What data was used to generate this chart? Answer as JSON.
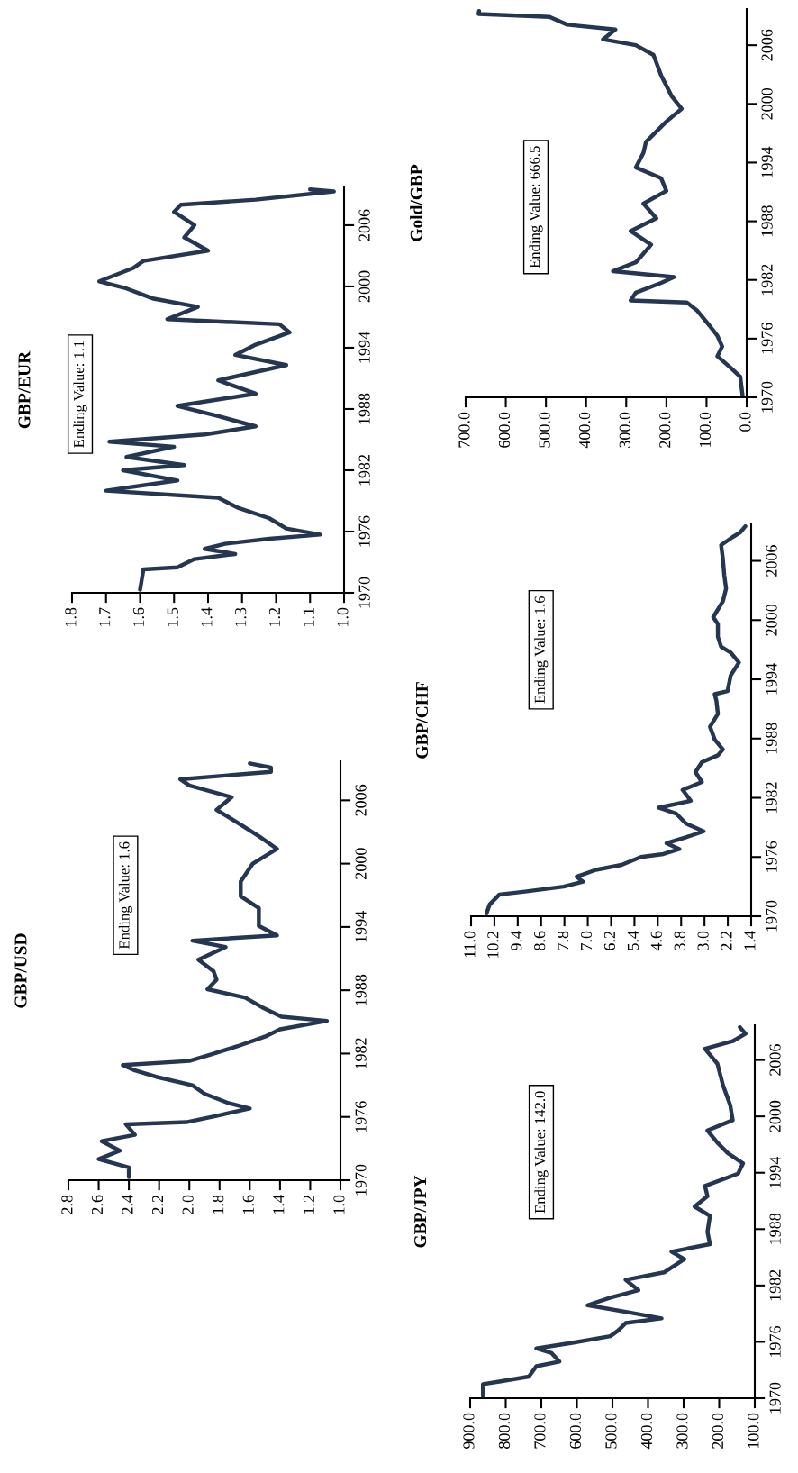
{
  "chart_data": [
    {
      "type": "line",
      "orientation": "horizontal",
      "title": "GBP/USD",
      "annotations": [
        "Ending Value: 1.6"
      ],
      "color": "#253652",
      "x": [
        1970.3,
        1971.2,
        1972.0,
        1972.8,
        1973.7,
        1974.3,
        1975.3,
        1975.5,
        1976.1,
        1976.8,
        1977.3,
        1978.2,
        1979.0,
        1979.8,
        1980.4,
        1980.9,
        1981.3,
        1981.9,
        1982.7,
        1983.6,
        1984.3,
        1985.1,
        1985.5,
        1986.4,
        1987.3,
        1988.1,
        1989.0,
        1989.8,
        1990.9,
        1992.1,
        1992.7,
        1993.2,
        1994.1,
        1995.8,
        1996.9,
        1998.3,
        2000.0,
        2001.4,
        2002.6,
        2003.7,
        2005.1,
        2006.3,
        2007.4,
        2008.0,
        2008.7,
        2009.1,
        2009.5
      ],
      "values": [
        2.4,
        2.4,
        2.6,
        2.46,
        2.58,
        2.36,
        2.42,
        2.02,
        1.82,
        1.6,
        1.74,
        1.9,
        1.98,
        2.22,
        2.36,
        2.44,
        2.0,
        1.86,
        1.68,
        1.5,
        1.4,
        1.09,
        1.39,
        1.52,
        1.63,
        1.88,
        1.82,
        1.84,
        1.94,
        1.76,
        1.98,
        1.42,
        1.54,
        1.54,
        1.66,
        1.66,
        1.58,
        1.42,
        1.54,
        1.66,
        1.82,
        1.72,
        2.0,
        2.06,
        1.46,
        1.46,
        1.6
      ],
      "xlim": [
        2.8,
        1.0
      ],
      "xticks": [
        2.8,
        2.6,
        2.4,
        2.2,
        {
          "value": 2.0,
          "label": "2.0"
        },
        1.8,
        1.6,
        1.4,
        1.2,
        {
          "value": 1.0,
          "label": "1.0"
        }
      ],
      "ylim": [
        1970,
        2009.7
      ],
      "yticks": [
        1970,
        1976,
        1982,
        1988,
        1994,
        2000,
        2006
      ]
    },
    {
      "type": "line",
      "orientation": "horizontal",
      "title": "GBP/EUR",
      "annotations": [
        "Ending Value: 1.1"
      ],
      "color": "#253652",
      "x": [
        1970.3,
        1972.3,
        1972.5,
        1973.3,
        1973.8,
        1974.3,
        1974.8,
        1975.3,
        1975.7,
        1976.3,
        1977.3,
        1978.3,
        1979.3,
        1980.0,
        1981.0,
        1982.0,
        1982.5,
        1983.3,
        1984.3,
        1984.8,
        1985.5,
        1986.3,
        1987.3,
        1988.3,
        1989.5,
        1990.8,
        1992.3,
        1993.3,
        1994.3,
        1995.5,
        1996.3,
        1996.8,
        1998.0,
        1998.8,
        1999.8,
        2000.5,
        2001.8,
        2002.5,
        2003.5,
        2004.8,
        2006.0,
        2007.3,
        2008.0,
        2008.5,
        2009.3,
        2009.5
      ],
      "values": [
        1.6,
        1.59,
        1.49,
        1.44,
        1.32,
        1.41,
        1.35,
        1.22,
        1.07,
        1.17,
        1.22,
        1.31,
        1.37,
        1.7,
        1.49,
        1.65,
        1.47,
        1.64,
        1.5,
        1.69,
        1.41,
        1.26,
        1.37,
        1.49,
        1.26,
        1.37,
        1.17,
        1.32,
        1.26,
        1.16,
        1.19,
        1.52,
        1.43,
        1.56,
        1.64,
        1.72,
        1.62,
        1.59,
        1.4,
        1.47,
        1.44,
        1.5,
        1.48,
        1.26,
        1.03,
        1.1
      ],
      "xlim": [
        1.8,
        1.0
      ],
      "xticks": [
        1.8,
        1.7,
        1.6,
        1.5,
        1.4,
        1.3,
        1.2,
        1.1,
        {
          "value": 1.0,
          "label": "1.0"
        }
      ],
      "ylim": [
        1970,
        2009.7
      ],
      "yticks": [
        1970,
        1976,
        1982,
        1988,
        1994,
        2000,
        2006
      ]
    },
    {
      "type": "line",
      "orientation": "horizontal",
      "title": "GBP/JPY",
      "annotations": [
        "Ending Value: 142.0"
      ],
      "color": "#253652",
      "x": [
        1970.2,
        1971.5,
        1971.8,
        1972.3,
        1973.4,
        1973.9,
        1974.8,
        1975.3,
        1975.9,
        1976.6,
        1977.2,
        1978.0,
        1978.5,
        1979.1,
        1979.9,
        1980.7,
        1981.5,
        1982.6,
        1983.4,
        1984.8,
        1985.6,
        1986.4,
        1987.7,
        1989.4,
        1990.4,
        1991.5,
        1992.6,
        1993.9,
        1995.0,
        1996.1,
        1997.2,
        1998.5,
        1999.6,
        2001.2,
        2003.4,
        2005.6,
        2007.2,
        2008.0,
        2008.8,
        2009.5
      ],
      "values": [
        864,
        864,
        814,
        735,
        714,
        649,
        671,
        714,
        613,
        506,
        484,
        463,
        362,
        448,
        570,
        506,
        427,
        463,
        355,
        298,
        334,
        226,
        233,
        226,
        269,
        233,
        240,
        147,
        133,
        176,
        205,
        233,
        162,
        169,
        190,
        205,
        240,
        162,
        126,
        142
      ],
      "xlim": [
        900,
        100
      ],
      "xticks": [
        {
          "value": 900,
          "label": "900.0"
        },
        {
          "value": 800,
          "label": "800.0"
        },
        {
          "value": 700,
          "label": "700.0"
        },
        {
          "value": 600,
          "label": "600.0"
        },
        {
          "value": 500,
          "label": "500.0"
        },
        {
          "value": 400,
          "label": "400.0"
        },
        {
          "value": 300,
          "label": "300.0"
        },
        {
          "value": 200,
          "label": "200.0"
        },
        {
          "value": 100,
          "label": "100.0"
        }
      ],
      "ylim": [
        1970,
        2009.7
      ],
      "yticks": [
        1970,
        1976,
        1982,
        1988,
        1994,
        2000,
        2006
      ]
    },
    {
      "type": "line",
      "orientation": "horizontal",
      "title": "GBP/CHF",
      "annotations": [
        "Ending Value: 1.6"
      ],
      "color": "#253652",
      "x": [
        1970.3,
        1971.2,
        1972.2,
        1972.5,
        1973.0,
        1973.5,
        1974.0,
        1974.7,
        1975.2,
        1976.0,
        1976.3,
        1976.8,
        1977.4,
        1978.1,
        1978.6,
        1979.4,
        1980.4,
        1981.0,
        1981.7,
        1982.8,
        1983.6,
        1984.6,
        1985.6,
        1986.3,
        1986.9,
        1987.9,
        1989.2,
        1990.5,
        1991.8,
        1992.5,
        1992.8,
        1994.4,
        1995.7,
        1996.7,
        1997.3,
        1998.3,
        1999.6,
        2000.3,
        2001.9,
        2003.2,
        2004.5,
        2006.2,
        2007.6,
        2008.4,
        2008.9,
        2009.5
      ],
      "values": [
        10.47,
        10.36,
        10.03,
        9.15,
        7.83,
        7.16,
        7.38,
        6.72,
        5.84,
        5.18,
        4.41,
        3.86,
        4.3,
        3.53,
        3.03,
        3.64,
        3.97,
        4.57,
        3.47,
        3.75,
        3.09,
        3.31,
        3.09,
        2.54,
        2.37,
        2.65,
        2.81,
        2.54,
        2.59,
        2.65,
        2.21,
        2.1,
        1.82,
        2.1,
        2.43,
        2.54,
        2.54,
        2.7,
        2.37,
        2.26,
        2.32,
        2.37,
        2.43,
        2.04,
        1.77,
        1.6
      ],
      "xlim": [
        11.0,
        1.4
      ],
      "xticks": [
        {
          "value": 11.0,
          "label": "11.0"
        },
        10.2,
        9.4,
        8.6,
        7.8,
        {
          "value": 7.0,
          "label": "7.0"
        },
        6.2,
        5.4,
        4.6,
        3.8,
        {
          "value": 3.0,
          "label": "3.0"
        },
        2.2,
        1.4
      ],
      "ylim": [
        1970,
        2009.7
      ],
      "yticks": [
        1970,
        1976,
        1982,
        1988,
        1994,
        2000,
        2006
      ]
    },
    {
      "type": "line",
      "orientation": "horizontal",
      "title": "Gold/GBP",
      "annotations": [
        "Ending Value: 666.5"
      ],
      "color": "#253652",
      "x": [
        1970.1,
        1972.1,
        1973.1,
        1974.2,
        1975.2,
        1976.3,
        1977.3,
        1978.9,
        1979.7,
        1979.9,
        1980.7,
        1981.7,
        1982.3,
        1982.9,
        1983.8,
        1985.6,
        1987.0,
        1988.3,
        1989.8,
        1991.1,
        1992.4,
        1993.5,
        1995.0,
        1996.1,
        1998.2,
        1999.5,
        2000.8,
        2002.9,
        2005.0,
        2006.0,
        2006.6,
        2007.6,
        2008.1,
        2008.9,
        2009.2,
        2009.5
      ],
      "values": [
        10,
        16,
        42,
        73,
        61,
        73,
        92,
        124,
        149,
        289,
        276,
        213,
        181,
        333,
        276,
        238,
        289,
        225,
        257,
        200,
        213,
        276,
        257,
        251,
        200,
        162,
        187,
        213,
        232,
        276,
        358,
        327,
        447,
        491,
        668,
        666.5
      ],
      "xlim": [
        700,
        0
      ],
      "xticks": [
        {
          "value": 700,
          "label": "700.0"
        },
        {
          "value": 600,
          "label": "600.0"
        },
        {
          "value": 500,
          "label": "500.0"
        },
        {
          "value": 400,
          "label": "400.0"
        },
        {
          "value": 300,
          "label": "300.0"
        },
        {
          "value": 200,
          "label": "200.0"
        },
        {
          "value": 100,
          "label": "100.0"
        },
        {
          "value": 0,
          "label": "0.0"
        }
      ],
      "ylim": [
        1970,
        2009.7
      ],
      "yticks": [
        1970,
        1976,
        1982,
        1988,
        1994,
        2000,
        2006
      ]
    }
  ]
}
